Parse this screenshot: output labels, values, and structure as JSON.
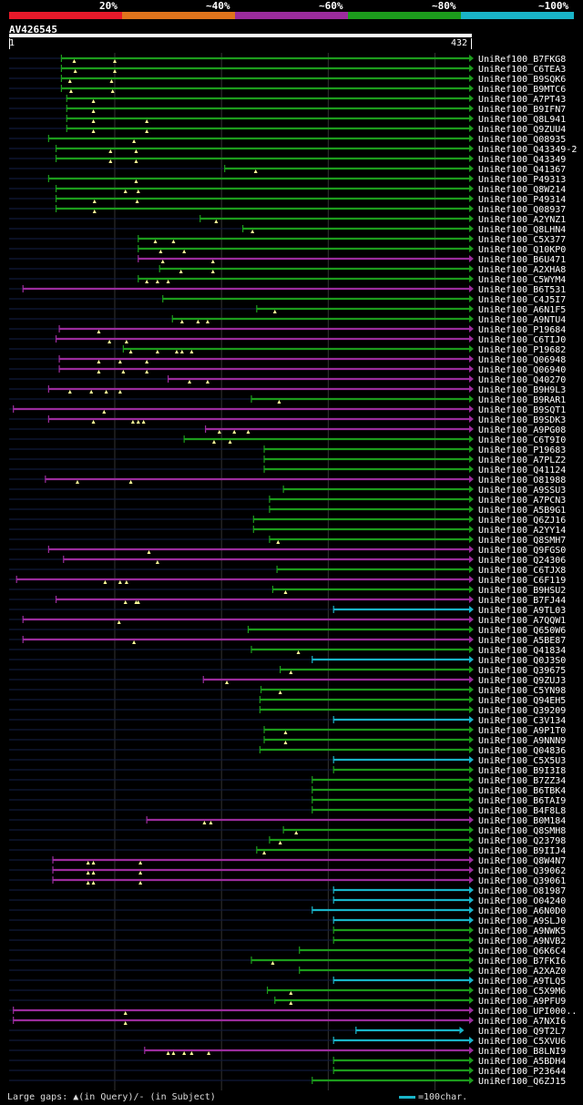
{
  "query": {
    "name": "AV426545",
    "start": "1",
    "end": "432",
    "length": 432
  },
  "legend": {
    "identity_bins": [
      {
        "label": "20%",
        "color": "#e8192a"
      },
      {
        "label": "~40%",
        "color": "#e0741c"
      },
      {
        "label": "~60%",
        "color": "#9b2c9d"
      },
      {
        "label": "~80%",
        "color": "#1c9c1c"
      },
      {
        "label": "~100%",
        "color": "#19b4c8"
      }
    ],
    "footer_gaps": "Large gaps: ▲(in Query)/- (in Subject)",
    "footer_scale": "=100char."
  },
  "chart_data": {
    "type": "alignment-overview",
    "title": "AV426545",
    "x_range": [
      1,
      432
    ],
    "gridlines": [
      100,
      200,
      300,
      400
    ],
    "hits": [
      {
        "name": "UniRef100_B7FKG8",
        "start": 50,
        "end": 432,
        "color": "g",
        "gaps": [
          62,
          100
        ]
      },
      {
        "name": "UniRef100_C6TEA3",
        "start": 50,
        "end": 432,
        "color": "g",
        "gaps": [
          63,
          100
        ]
      },
      {
        "name": "UniRef100_B9SQK6",
        "start": 50,
        "end": 432,
        "color": "g",
        "gaps": [
          58,
          97
        ]
      },
      {
        "name": "UniRef100_B9MTC6",
        "start": 50,
        "end": 432,
        "color": "g",
        "gaps": [
          59,
          98
        ]
      },
      {
        "name": "UniRef100_A7PT43",
        "start": 55,
        "end": 432,
        "color": "g",
        "gaps": [
          80
        ]
      },
      {
        "name": "UniRef100_B9IFN7",
        "start": 55,
        "end": 432,
        "color": "g",
        "gaps": [
          80
        ]
      },
      {
        "name": "UniRef100_Q8L941",
        "start": 55,
        "end": 432,
        "color": "g",
        "gaps": [
          80,
          130
        ]
      },
      {
        "name": "UniRef100_Q9ZUU4",
        "start": 55,
        "end": 432,
        "color": "g",
        "gaps": [
          80,
          130
        ]
      },
      {
        "name": "UniRef100_Q08935",
        "start": 38,
        "end": 432,
        "color": "g",
        "gaps": [
          118
        ]
      },
      {
        "name": "UniRef100_Q43349-2",
        "start": 45,
        "end": 432,
        "color": "g",
        "gaps": [
          96,
          120
        ]
      },
      {
        "name": "UniRef100_Q43349",
        "start": 45,
        "end": 432,
        "color": "g",
        "gaps": [
          96,
          120
        ]
      },
      {
        "name": "UniRef100_Q41367",
        "start": 203,
        "end": 432,
        "color": "g",
        "gaps": [
          232
        ]
      },
      {
        "name": "UniRef100_P49313",
        "start": 38,
        "end": 432,
        "color": "g",
        "gaps": [
          120
        ]
      },
      {
        "name": "UniRef100_Q8W214",
        "start": 45,
        "end": 432,
        "color": "g",
        "gaps": [
          110,
          122
        ]
      },
      {
        "name": "UniRef100_P49314",
        "start": 45,
        "end": 432,
        "color": "g",
        "gaps": [
          81,
          121
        ]
      },
      {
        "name": "UniRef100_Q08937",
        "start": 45,
        "end": 432,
        "color": "g",
        "gaps": [
          81
        ]
      },
      {
        "name": "UniRef100_A2YNZ1",
        "start": 180,
        "end": 432,
        "color": "g",
        "gaps": [
          195
        ]
      },
      {
        "name": "UniRef100_Q8LHN4",
        "start": 220,
        "end": 432,
        "color": "g",
        "gaps": [
          229
        ]
      },
      {
        "name": "UniRef100_C5X377",
        "start": 122,
        "end": 432,
        "color": "g",
        "gaps": [
          138,
          155
        ]
      },
      {
        "name": "UniRef100_Q10KP0",
        "start": 122,
        "end": 432,
        "color": "g",
        "gaps": [
          143,
          165
        ]
      },
      {
        "name": "UniRef100_B6U471",
        "start": 122,
        "end": 432,
        "color": "p",
        "gaps": [
          145,
          192
        ]
      },
      {
        "name": "UniRef100_A2XHA8",
        "start": 142,
        "end": 432,
        "color": "g",
        "gaps": [
          162,
          192
        ]
      },
      {
        "name": "UniRef100_C5WYM4",
        "start": 122,
        "end": 432,
        "color": "g",
        "gaps": [
          130,
          140,
          150
        ]
      },
      {
        "name": "UniRef100_B6T531",
        "start": 14,
        "end": 432,
        "color": "p",
        "gaps": []
      },
      {
        "name": "UniRef100_C4J5I7",
        "start": 145,
        "end": 432,
        "color": "g",
        "gaps": []
      },
      {
        "name": "UniRef100_A6N1F5",
        "start": 233,
        "end": 432,
        "color": "g",
        "gaps": [
          250
        ]
      },
      {
        "name": "UniRef100_A9NTU4",
        "start": 154,
        "end": 432,
        "color": "g",
        "gaps": [
          163,
          178,
          187
        ]
      },
      {
        "name": "UniRef100_P19684",
        "start": 48,
        "end": 432,
        "color": "p",
        "gaps": [
          85
        ]
      },
      {
        "name": "UniRef100_C6TIJ0",
        "start": 45,
        "end": 432,
        "color": "p",
        "gaps": [
          95,
          111
        ]
      },
      {
        "name": "UniRef100_P19682",
        "start": 108,
        "end": 432,
        "color": "g",
        "gaps": [
          115,
          140,
          158,
          163,
          172
        ]
      },
      {
        "name": "UniRef100_Q06948",
        "start": 48,
        "end": 432,
        "color": "p",
        "gaps": [
          85,
          105,
          130
        ]
      },
      {
        "name": "UniRef100_Q06940",
        "start": 48,
        "end": 432,
        "color": "p",
        "gaps": [
          85,
          108,
          130
        ]
      },
      {
        "name": "UniRef100_Q40270",
        "start": 150,
        "end": 432,
        "color": "p",
        "gaps": [
          170,
          187
        ]
      },
      {
        "name": "UniRef100_B9H9L3",
        "start": 38,
        "end": 432,
        "color": "p",
        "gaps": [
          58,
          78,
          92,
          105
        ]
      },
      {
        "name": "UniRef100_B9RAR1",
        "start": 228,
        "end": 432,
        "color": "g",
        "gaps": [
          254
        ]
      },
      {
        "name": "UniRef100_B9SQT1",
        "start": 5,
        "end": 432,
        "color": "p",
        "gaps": [
          90
        ]
      },
      {
        "name": "UniRef100_B9SDK3",
        "start": 38,
        "end": 432,
        "color": "p",
        "gaps": [
          80,
          117,
          122,
          127
        ]
      },
      {
        "name": "UniRef100_A9PG08",
        "start": 185,
        "end": 432,
        "color": "p",
        "gaps": [
          198,
          212,
          225
        ]
      },
      {
        "name": "UniRef100_C6T9I0",
        "start": 165,
        "end": 432,
        "color": "g",
        "gaps": [
          193,
          208
        ]
      },
      {
        "name": "UniRef100_P19683",
        "start": 240,
        "end": 432,
        "color": "g",
        "gaps": []
      },
      {
        "name": "UniRef100_A7PLZ2",
        "start": 240,
        "end": 432,
        "color": "g",
        "gaps": []
      },
      {
        "name": "UniRef100_Q41124",
        "start": 240,
        "end": 432,
        "color": "g",
        "gaps": []
      },
      {
        "name": "UniRef100_O81988",
        "start": 35,
        "end": 432,
        "color": "p",
        "gaps": [
          65,
          115
        ]
      },
      {
        "name": "UniRef100_A9SSU3",
        "start": 258,
        "end": 432,
        "color": "g",
        "gaps": []
      },
      {
        "name": "UniRef100_A7PCN3",
        "start": 245,
        "end": 432,
        "color": "g",
        "gaps": []
      },
      {
        "name": "UniRef100_A5B9G1",
        "start": 245,
        "end": 432,
        "color": "g",
        "gaps": []
      },
      {
        "name": "UniRef100_Q6ZJ16",
        "start": 230,
        "end": 432,
        "color": "g",
        "gaps": []
      },
      {
        "name": "UniRef100_A2YY14",
        "start": 230,
        "end": 432,
        "color": "g",
        "gaps": []
      },
      {
        "name": "UniRef100_Q8SMH7",
        "start": 245,
        "end": 432,
        "color": "g",
        "gaps": [
          253
        ]
      },
      {
        "name": "UniRef100_Q9FGS0",
        "start": 38,
        "end": 432,
        "color": "p",
        "gaps": [
          132
        ]
      },
      {
        "name": "UniRef100_Q24306",
        "start": 52,
        "end": 432,
        "color": "p",
        "gaps": [
          140
        ]
      },
      {
        "name": "UniRef100_C6TJX8",
        "start": 252,
        "end": 432,
        "color": "g",
        "gaps": []
      },
      {
        "name": "UniRef100_C6F119",
        "start": 8,
        "end": 432,
        "color": "p",
        "gaps": [
          91,
          105,
          111
        ]
      },
      {
        "name": "UniRef100_B9HSU2",
        "start": 248,
        "end": 432,
        "color": "g",
        "gaps": [
          260
        ]
      },
      {
        "name": "UniRef100_B7FJ44",
        "start": 45,
        "end": 432,
        "color": "p",
        "gaps": [
          110,
          120,
          122
        ]
      },
      {
        "name": "UniRef100_A9TL03",
        "start": 305,
        "end": 432,
        "color": "c",
        "gaps": []
      },
      {
        "name": "UniRef100_A7QQW1",
        "start": 14,
        "end": 432,
        "color": "p",
        "gaps": [
          104
        ]
      },
      {
        "name": "UniRef100_Q650W6",
        "start": 225,
        "end": 432,
        "color": "g",
        "gaps": []
      },
      {
        "name": "UniRef100_A5BE87",
        "start": 14,
        "end": 432,
        "color": "p",
        "gaps": [
          118
        ]
      },
      {
        "name": "UniRef100_Q41834",
        "start": 228,
        "end": 432,
        "color": "g",
        "gaps": [
          272
        ]
      },
      {
        "name": "UniRef100_Q0J3S0",
        "start": 285,
        "end": 432,
        "color": "c",
        "gaps": []
      },
      {
        "name": "UniRef100_Q39675",
        "start": 255,
        "end": 432,
        "color": "g",
        "gaps": [
          265
        ]
      },
      {
        "name": "UniRef100_Q9ZUJ3",
        "start": 183,
        "end": 432,
        "color": "p",
        "gaps": [
          205
        ]
      },
      {
        "name": "UniRef100_C5YN98",
        "start": 237,
        "end": 432,
        "color": "g",
        "gaps": [
          255
        ]
      },
      {
        "name": "UniRef100_Q94EH5",
        "start": 236,
        "end": 432,
        "color": "g",
        "gaps": []
      },
      {
        "name": "UniRef100_Q39209",
        "start": 236,
        "end": 432,
        "color": "g",
        "gaps": []
      },
      {
        "name": "UniRef100_C3V134",
        "start": 305,
        "end": 432,
        "color": "c",
        "gaps": []
      },
      {
        "name": "UniRef100_A9P1T0",
        "start": 240,
        "end": 432,
        "color": "g",
        "gaps": [
          260
        ]
      },
      {
        "name": "UniRef100_A9NNN9",
        "start": 240,
        "end": 432,
        "color": "g",
        "gaps": [
          260
        ]
      },
      {
        "name": "UniRef100_Q04836",
        "start": 236,
        "end": 432,
        "color": "g",
        "gaps": []
      },
      {
        "name": "UniRef100_C5X5U3",
        "start": 305,
        "end": 432,
        "color": "c",
        "gaps": []
      },
      {
        "name": "UniRef100_B9I3I8",
        "start": 305,
        "end": 432,
        "color": "g",
        "gaps": []
      },
      {
        "name": "UniRef100_B7ZZ34",
        "start": 285,
        "end": 432,
        "color": "g",
        "gaps": []
      },
      {
        "name": "UniRef100_B6TBK4",
        "start": 285,
        "end": 432,
        "color": "g",
        "gaps": []
      },
      {
        "name": "UniRef100_B6TAI9",
        "start": 285,
        "end": 432,
        "color": "g",
        "gaps": []
      },
      {
        "name": "UniRef100_B4F8L8",
        "start": 285,
        "end": 432,
        "color": "g",
        "gaps": []
      },
      {
        "name": "UniRef100_B0M184",
        "start": 130,
        "end": 432,
        "color": "p",
        "gaps": [
          184,
          190
        ]
      },
      {
        "name": "UniRef100_Q8SMH8",
        "start": 258,
        "end": 432,
        "color": "g",
        "gaps": [
          270
        ]
      },
      {
        "name": "UniRef100_Q23798",
        "start": 245,
        "end": 432,
        "color": "g",
        "gaps": [
          255
        ]
      },
      {
        "name": "UniRef100_B9IIJ4",
        "start": 233,
        "end": 432,
        "color": "g",
        "gaps": [
          240
        ]
      },
      {
        "name": "UniRef100_Q8W4N7",
        "start": 42,
        "end": 432,
        "color": "p",
        "gaps": [
          75,
          80,
          124
        ]
      },
      {
        "name": "UniRef100_Q39062",
        "start": 42,
        "end": 432,
        "color": "p",
        "gaps": [
          75,
          80,
          124
        ]
      },
      {
        "name": "UniRef100_Q39061",
        "start": 42,
        "end": 432,
        "color": "p",
        "gaps": [
          75,
          80,
          124
        ]
      },
      {
        "name": "UniRef100_O81987",
        "start": 305,
        "end": 432,
        "color": "c",
        "gaps": []
      },
      {
        "name": "UniRef100_O04240",
        "start": 305,
        "end": 432,
        "color": "c",
        "gaps": []
      },
      {
        "name": "UniRef100_A6N0D0",
        "start": 285,
        "end": 432,
        "color": "c",
        "gaps": []
      },
      {
        "name": "UniRef100_A9SLJ0",
        "start": 305,
        "end": 432,
        "color": "c",
        "gaps": []
      },
      {
        "name": "UniRef100_A9NWK5",
        "start": 305,
        "end": 432,
        "color": "g",
        "gaps": []
      },
      {
        "name": "UniRef100_A9NVB2",
        "start": 305,
        "end": 432,
        "color": "g",
        "gaps": []
      },
      {
        "name": "UniRef100_Q6K6C4",
        "start": 273,
        "end": 432,
        "color": "g",
        "gaps": []
      },
      {
        "name": "UniRef100_B7FKI6",
        "start": 228,
        "end": 432,
        "color": "g",
        "gaps": [
          248
        ]
      },
      {
        "name": "UniRef100_A2XAZ0",
        "start": 273,
        "end": 432,
        "color": "g",
        "gaps": []
      },
      {
        "name": "UniRef100_A9TLQ5",
        "start": 305,
        "end": 432,
        "color": "c",
        "gaps": []
      },
      {
        "name": "UniRef100_C5X9M6",
        "start": 243,
        "end": 432,
        "color": "g",
        "gaps": [
          265
        ]
      },
      {
        "name": "UniRef100_A9PFU9",
        "start": 250,
        "end": 432,
        "color": "g",
        "gaps": [
          265
        ]
      },
      {
        "name": "UniRef100_UPI000..",
        "start": 5,
        "end": 432,
        "color": "p",
        "gaps": [
          110
        ]
      },
      {
        "name": "UniRef100_A7NXI6",
        "start": 5,
        "end": 432,
        "color": "p",
        "gaps": [
          110
        ]
      },
      {
        "name": "UniRef100_Q9T2L7",
        "start": 326,
        "end": 423,
        "color": "c",
        "gaps": []
      },
      {
        "name": "UniRef100_C5XVU6",
        "start": 305,
        "end": 432,
        "color": "c",
        "gaps": []
      },
      {
        "name": "UniRef100_B8LNI9",
        "start": 128,
        "end": 432,
        "color": "p",
        "gaps": [
          150,
          155,
          165,
          172,
          188
        ]
      },
      {
        "name": "UniRef100_A5BDH4",
        "start": 305,
        "end": 432,
        "color": "g",
        "gaps": []
      },
      {
        "name": "UniRef100_P23644",
        "start": 305,
        "end": 432,
        "color": "g",
        "gaps": []
      },
      {
        "name": "UniRef100_Q6ZJ15",
        "start": 285,
        "end": 432,
        "color": "g",
        "gaps": []
      }
    ]
  }
}
